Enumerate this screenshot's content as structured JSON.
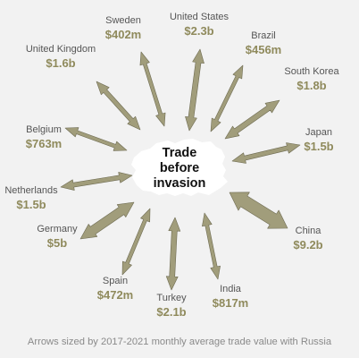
{
  "center": {
    "title_lines": [
      "Trade",
      "before",
      "invasion"
    ]
  },
  "caption": "Arrows sized by 2017-2021 monthly average trade value with Russia",
  "colors": {
    "arrow": "#a19d7b",
    "arrow_stroke": "#6e6b52",
    "value_text": "#8f8a5c",
    "name_text": "#555555",
    "background": "#f2f2f2",
    "map": "#ffffff"
  },
  "countries": [
    {
      "name": "United States",
      "value": "$2.3b"
    },
    {
      "name": "Brazil",
      "value": "$456m"
    },
    {
      "name": "South Korea",
      "value": "$1.8b"
    },
    {
      "name": "Japan",
      "value": "$1.5b"
    },
    {
      "name": "China",
      "value": "$9.2b"
    },
    {
      "name": "India",
      "value": "$817m"
    },
    {
      "name": "Turkey",
      "value": "$2.1b"
    },
    {
      "name": "Spain",
      "value": "$472m"
    },
    {
      "name": "Germany",
      "value": "$5b"
    },
    {
      "name": "Netherlands",
      "value": "$1.5b"
    },
    {
      "name": "Belgium",
      "value": "$763m"
    },
    {
      "name": "United Kingdom",
      "value": "$1.6b"
    },
    {
      "name": "Sweden",
      "value": "$402m"
    }
  ]
}
